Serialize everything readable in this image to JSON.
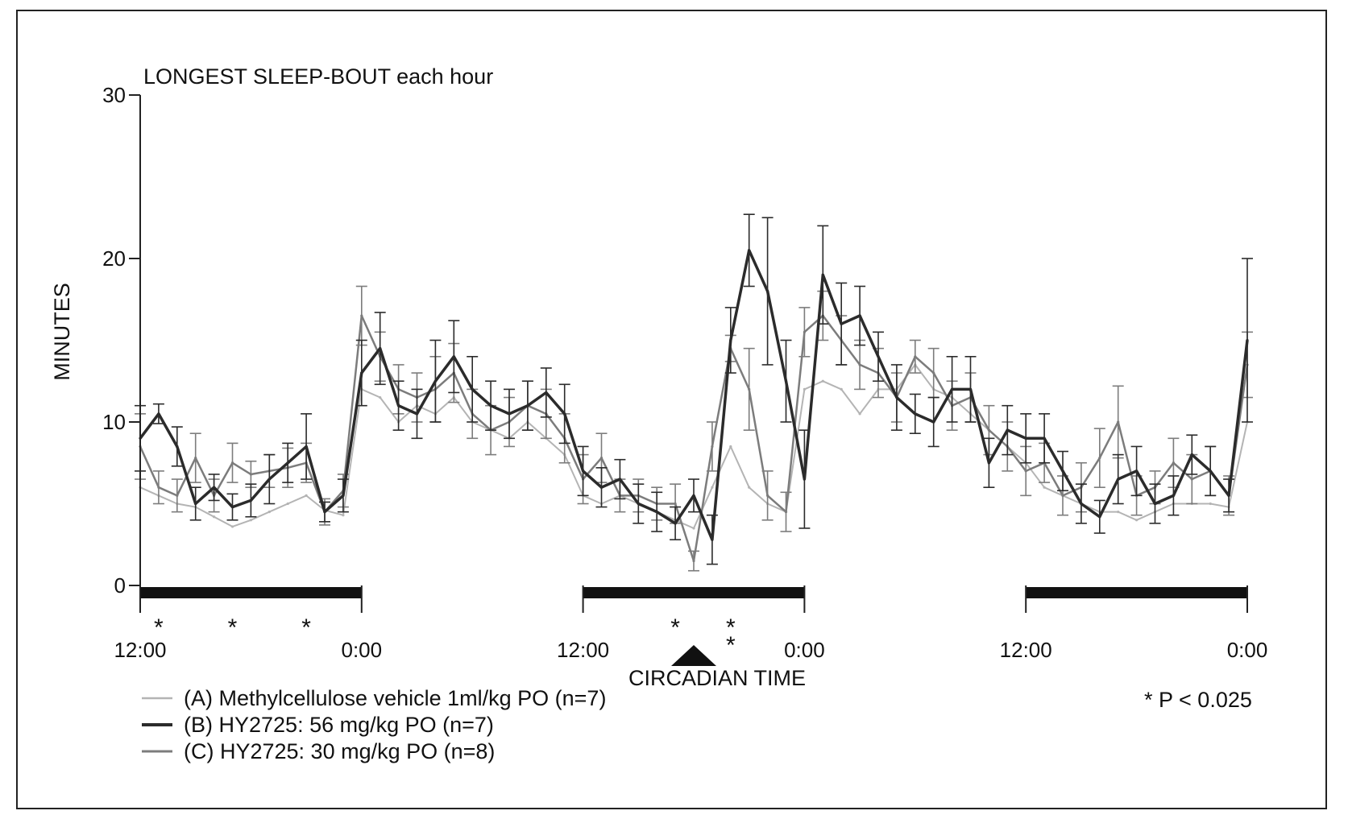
{
  "chart_data": {
    "type": "line",
    "title": "LONGEST SLEEP-BOUT each hour",
    "xlabel": "CIRCADIAN TIME",
    "ylabel": "MINUTES",
    "ylim": [
      0,
      30
    ],
    "yticks": [
      0,
      10,
      20,
      30
    ],
    "xlim": [
      0,
      60
    ],
    "xticks": [
      {
        "x": 0,
        "label": "12:00"
      },
      {
        "x": 12,
        "label": "0:00"
      },
      {
        "x": 24,
        "label": "12:00"
      },
      {
        "x": 36,
        "label": "0:00"
      },
      {
        "x": 48,
        "label": "12:00"
      },
      {
        "x": 60,
        "label": "0:00"
      }
    ],
    "dark_periods": [
      [
        0,
        12
      ],
      [
        24,
        36
      ],
      [
        48,
        60
      ]
    ],
    "dosing_marker_x": 30,
    "significance_note": "* P < 0.025",
    "significance_stars": [
      {
        "x": 1,
        "count": 1
      },
      {
        "x": 5,
        "count": 1
      },
      {
        "x": 9,
        "count": 1
      },
      {
        "x": 29,
        "count": 1
      },
      {
        "x": 32,
        "count": 2
      }
    ],
    "series": [
      {
        "name": "(A) Methylcellulose vehicle 1ml/kg PO (n=7)",
        "short": "A",
        "color": "#b4b4b4",
        "width": 2,
        "x": [
          0,
          1,
          2,
          3,
          4,
          5,
          6,
          7,
          8,
          9,
          10,
          11,
          12,
          13,
          14,
          15,
          16,
          17,
          18,
          19,
          20,
          21,
          22,
          23,
          24,
          25,
          26,
          27,
          28,
          29,
          30,
          31,
          32,
          33,
          34,
          35,
          36,
          37,
          38,
          39,
          40,
          41,
          42,
          43,
          44,
          45,
          46,
          47,
          48,
          49,
          50,
          51,
          52,
          53,
          54,
          55,
          56,
          57,
          58,
          59,
          60
        ],
        "values": [
          6.0,
          5.5,
          5.0,
          4.8,
          4.2,
          3.6,
          4.0,
          4.5,
          5.0,
          5.5,
          4.6,
          4.3,
          12.0,
          11.5,
          10.0,
          11.0,
          10.5,
          11.5,
          10.0,
          9.5,
          9.0,
          10.0,
          9.0,
          8.0,
          5.5,
          5.0,
          5.5,
          5.0,
          4.5,
          4.0,
          3.5,
          6.0,
          8.5,
          6.0,
          5.0,
          4.5,
          12.0,
          12.5,
          12.0,
          10.5,
          12.0,
          12.0,
          13.5,
          12.0,
          11.5,
          10.5,
          9.5,
          8.5,
          7.5,
          6.0,
          5.5,
          5.0,
          4.5,
          4.5,
          4.0,
          4.5,
          5.0,
          5.0,
          5.0,
          4.8,
          10.0
        ],
        "errors": []
      },
      {
        "name": "(B) HY2725: 56 mg/kg PO (n=7)",
        "short": "B",
        "color": "#2b2b2b",
        "width": 3.5,
        "x": [
          0,
          1,
          2,
          3,
          4,
          5,
          6,
          7,
          8,
          9,
          10,
          11,
          12,
          13,
          14,
          15,
          16,
          17,
          18,
          19,
          20,
          21,
          22,
          23,
          24,
          25,
          26,
          27,
          28,
          29,
          30,
          31,
          32,
          33,
          34,
          35,
          36,
          37,
          38,
          39,
          40,
          41,
          42,
          43,
          44,
          45,
          46,
          47,
          48,
          49,
          50,
          51,
          52,
          53,
          54,
          55,
          56,
          57,
          58,
          59,
          60
        ],
        "values": [
          9.0,
          10.5,
          8.5,
          5.0,
          6.0,
          4.8,
          5.2,
          6.5,
          7.5,
          8.5,
          4.5,
          5.5,
          13.0,
          14.5,
          11.0,
          10.5,
          12.5,
          14.0,
          12.0,
          11.0,
          10.5,
          11.0,
          11.8,
          10.5,
          7.0,
          6.0,
          6.5,
          5.0,
          4.5,
          3.8,
          5.5,
          2.8,
          15.0,
          20.5,
          18.0,
          12.5,
          6.5,
          19.0,
          16.0,
          16.5,
          14.0,
          11.5,
          10.5,
          10.0,
          12.0,
          12.0,
          7.5,
          9.5,
          9.0,
          9.0,
          7.0,
          5.0,
          4.2,
          6.5,
          7.0,
          5.0,
          5.5,
          8.0,
          7.0,
          5.5,
          15.0
        ],
        "errors": [
          2.0,
          0.6,
          1.2,
          1.0,
          0.8,
          0.8,
          1.0,
          1.5,
          1.2,
          2.0,
          0.6,
          1.0,
          2.0,
          2.2,
          1.5,
          1.5,
          2.5,
          2.2,
          2.0,
          1.5,
          1.5,
          1.5,
          1.5,
          1.8,
          1.5,
          1.2,
          1.2,
          1.2,
          1.2,
          1.0,
          1.0,
          1.5,
          2.0,
          2.2,
          4.5,
          2.5,
          3.0,
          3.0,
          2.5,
          1.8,
          1.5,
          2.0,
          1.2,
          1.5,
          2.0,
          2.0,
          1.5,
          1.5,
          1.5,
          1.5,
          1.2,
          1.2,
          1.0,
          1.5,
          1.5,
          1.2,
          1.2,
          1.2,
          1.5,
          1.0,
          5.0
        ]
      },
      {
        "name": "(C) HY2725: 30 mg/kg PO (n=8)",
        "short": "C",
        "color": "#7c7c7c",
        "width": 2.5,
        "x": [
          0,
          1,
          2,
          3,
          4,
          5,
          6,
          7,
          8,
          9,
          10,
          11,
          12,
          13,
          14,
          15,
          16,
          17,
          18,
          19,
          20,
          21,
          22,
          23,
          24,
          25,
          26,
          27,
          28,
          29,
          30,
          31,
          32,
          33,
          34,
          35,
          36,
          37,
          38,
          39,
          40,
          41,
          42,
          43,
          44,
          45,
          46,
          47,
          48,
          49,
          50,
          51,
          52,
          53,
          54,
          55,
          56,
          57,
          58,
          59,
          60
        ],
        "values": [
          8.5,
          6.0,
          5.5,
          7.8,
          5.5,
          7.5,
          6.8,
          7.0,
          7.2,
          7.5,
          4.5,
          5.8,
          16.5,
          14.0,
          12.0,
          11.5,
          12.0,
          13.0,
          10.5,
          9.5,
          10.0,
          11.0,
          10.5,
          9.0,
          6.5,
          7.8,
          5.5,
          5.5,
          5.0,
          5.0,
          1.5,
          8.5,
          14.5,
          12.0,
          5.5,
          4.5,
          15.5,
          16.5,
          15.0,
          13.5,
          13.0,
          11.5,
          14.0,
          13.0,
          11.0,
          11.5,
          9.5,
          8.5,
          7.0,
          7.5,
          5.5,
          6.0,
          7.8,
          10.0,
          5.5,
          6.0,
          7.5,
          6.5,
          7.0,
          5.5,
          13.5
        ],
        "errors": [
          2.0,
          1.0,
          1.0,
          1.5,
          1.0,
          1.2,
          0.8,
          1.0,
          1.2,
          1.2,
          0.8,
          1.0,
          1.8,
          1.5,
          1.5,
          1.5,
          2.0,
          1.8,
          1.5,
          1.5,
          1.5,
          1.5,
          1.5,
          1.5,
          1.5,
          1.5,
          1.0,
          1.0,
          1.0,
          1.2,
          0.6,
          1.5,
          0.8,
          2.5,
          1.5,
          1.2,
          1.5,
          1.5,
          1.5,
          1.5,
          1.5,
          1.5,
          1.0,
          1.5,
          1.5,
          1.5,
          1.5,
          1.5,
          1.5,
          1.2,
          1.2,
          1.5,
          1.8,
          2.2,
          1.2,
          1.0,
          1.5,
          1.5,
          1.5,
          1.2,
          2.0
        ]
      }
    ]
  }
}
